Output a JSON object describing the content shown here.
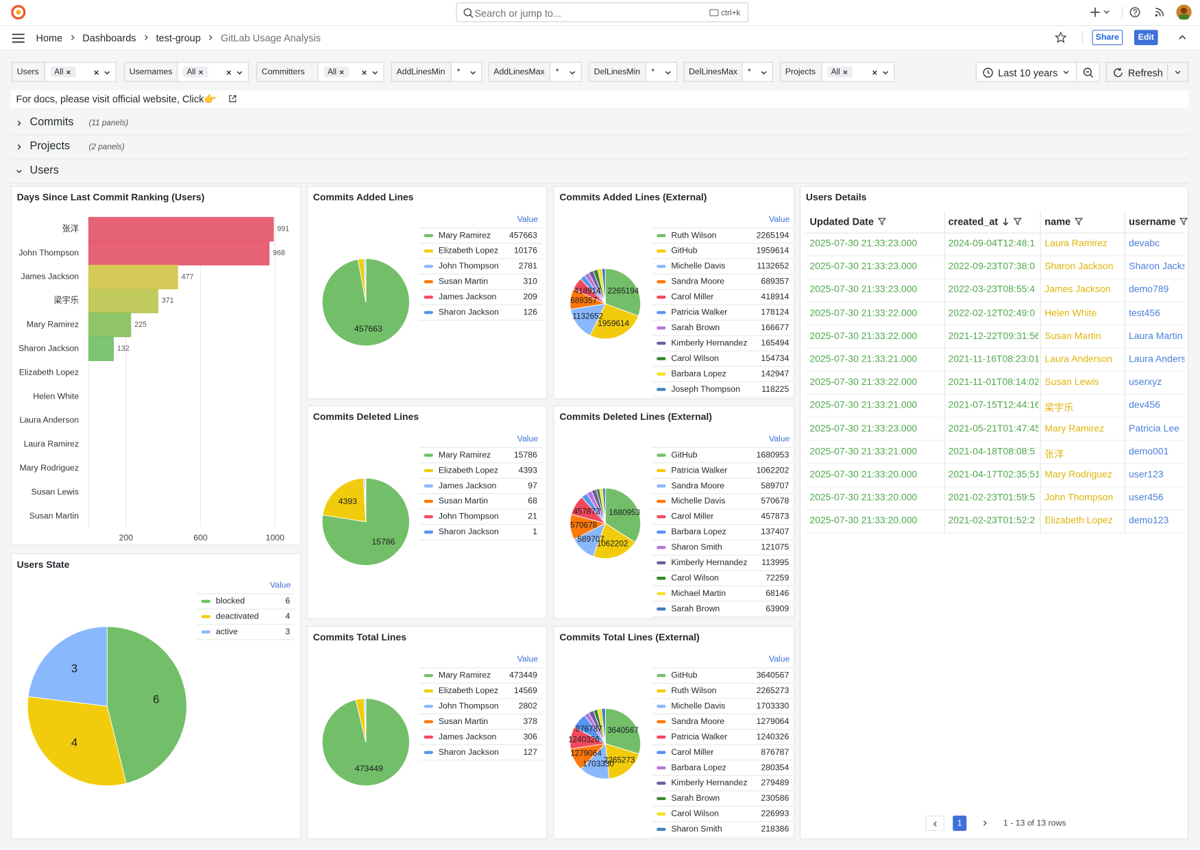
{
  "header": {
    "search_placeholder": "Search or jump to...",
    "shortcut": "ctrl+k"
  },
  "breadcrumb": [
    "Home",
    "Dashboards",
    "test-group",
    "GitLab Usage Analysis"
  ],
  "actions": [
    "Share",
    "Edit"
  ],
  "variables": [
    {
      "label": "Users",
      "value": "All",
      "multi": true
    },
    {
      "label": "Usernames",
      "value": "All",
      "multi": true
    },
    {
      "label": "Committers",
      "value": "All",
      "multi": true
    },
    {
      "label": "AddLinesMin",
      "value": "*",
      "multi": false
    },
    {
      "label": "AddLinesMax",
      "value": "*",
      "multi": false
    },
    {
      "label": "DelLinesMin",
      "value": "*",
      "multi": false
    },
    {
      "label": "DelLinesMax",
      "value": "*",
      "multi": false
    },
    {
      "label": "Projects",
      "value": "All",
      "multi": true
    }
  ],
  "time_range": "Last 10 years",
  "refresh": "Refresh",
  "docs_text": "For docs, please visit official website, Click👉",
  "rows": [
    {
      "title": "Commits",
      "note": "(11 panels)"
    },
    {
      "title": "Projects",
      "note": "(2 panels)"
    },
    {
      "title": "Users"
    }
  ],
  "palette": [
    "#73bf69",
    "#f2cc0c",
    "#8ab8ff",
    "#ff780a",
    "#f2495c",
    "#5794f2",
    "#b877d9",
    "#705da0",
    "#37872d",
    "#fade2a",
    "#447ebc"
  ],
  "bar_panel": {
    "type": "bar",
    "orientation": "horizontal",
    "title": "Days Since Last Commit Ranking (Users)",
    "categories": [
      "张洋",
      "John Thompson",
      "James Jackson",
      "梁宇乐",
      "Mary Ramirez",
      "Sharon Jackson",
      "Elizabeth Lopez",
      "Helen White",
      "Laura Anderson",
      "Laura Ramirez",
      "Mary Rodriguez",
      "Susan Lewis",
      "Susan Martin"
    ],
    "values": [
      991,
      968,
      477,
      371,
      225,
      132,
      null,
      null,
      null,
      null,
      null,
      null,
      null
    ],
    "colors": [
      "#e4566a",
      "#e4566a",
      "#d3c54b",
      "#bcc64f",
      "#86bf5c",
      "#73bf69",
      null,
      null,
      null,
      null,
      null,
      null,
      null
    ],
    "xlim": [
      0,
      1130
    ],
    "xticks": [
      200,
      600,
      1000
    ],
    "grid": true
  },
  "pies": [
    {
      "type": "pie",
      "title": "Commits Added Lines",
      "legend_header": "Value",
      "labels": [
        "Mary Ramirez",
        "Elizabeth Lopez",
        "John Thompson",
        "Susan Martin",
        "James Jackson",
        "Sharon Jackson"
      ],
      "values": [
        457663,
        10176,
        2781,
        310,
        209,
        126
      ]
    },
    {
      "type": "pie",
      "title": "Commits Added Lines (External)",
      "legend_header": "Value",
      "labels": [
        "Ruth Wilson",
        "GitHub",
        "Michelle Davis",
        "Sandra Moore",
        "Carol Miller",
        "Patricia Walker",
        "Sarah Brown",
        "Kimberly Hernandez",
        "Carol Wilson",
        "Barbara Lopez",
        "Joseph Thompson"
      ],
      "values": [
        2265194,
        1959614,
        1132652,
        689357,
        418914,
        178124,
        166677,
        165494,
        154734,
        142947,
        118225
      ]
    },
    {
      "type": "pie",
      "title": "Commits Deleted Lines",
      "legend_header": "Value",
      "labels": [
        "Mary Ramirez",
        "Elizabeth Lopez",
        "James Jackson",
        "Susan Martin",
        "John Thompson",
        "Sharon Jackson"
      ],
      "values": [
        15786,
        4393,
        97,
        68,
        21,
        1
      ]
    },
    {
      "type": "pie",
      "title": "Commits Deleted Lines (External)",
      "legend_header": "Value",
      "labels": [
        "GitHub",
        "Patricia Walker",
        "Sandra Moore",
        "Michelle Davis",
        "Carol Miller",
        "Barbara Lopez",
        "Sharon Smith",
        "Kimberly Hernandez",
        "Carol Wilson",
        "Michael Martin",
        "Sarah Brown"
      ],
      "values": [
        1680953,
        1062202,
        589707,
        570678,
        457873,
        137407,
        121075,
        113995,
        72259,
        68146,
        63909
      ]
    },
    {
      "type": "pie",
      "title": "Commits Total Lines",
      "legend_header": "Value",
      "labels": [
        "Mary Ramirez",
        "Elizabeth Lopez",
        "John Thompson",
        "Susan Martin",
        "James Jackson",
        "Sharon Jackson"
      ],
      "values": [
        473449,
        14569,
        2802,
        378,
        306,
        127
      ]
    },
    {
      "type": "pie",
      "title": "Commits Total Lines (External)",
      "legend_header": "Value",
      "labels": [
        "GitHub",
        "Ruth Wilson",
        "Michelle Davis",
        "Sandra Moore",
        "Patricia Walker",
        "Carol Miller",
        "Barbara Lopez",
        "Kimberly Hernandez",
        "Sarah Brown",
        "Carol Wilson",
        "Sharon Smith"
      ],
      "values": [
        3640567,
        2265273,
        1703330,
        1279064,
        1240326,
        876787,
        280354,
        279489,
        230586,
        226993,
        218386
      ]
    },
    {
      "type": "pie",
      "title": "Users State",
      "legend_header": "Value",
      "labels": [
        "blocked",
        "deactivated",
        "active"
      ],
      "values": [
        6,
        4,
        3
      ]
    }
  ],
  "table": {
    "title": "Users Details",
    "columns": [
      "Updated Date",
      "created_at",
      "name",
      "username"
    ],
    "rows": [
      [
        "2025-07-30 21:33:23.000",
        "2024-09-04T12:48:1",
        "Laura Ramirez",
        "devabc"
      ],
      [
        "2025-07-30 21:33:23.000",
        "2022-09-23T07:38:0",
        "Sharon Jackson",
        "Sharon Jackson"
      ],
      [
        "2025-07-30 21:33:23.000",
        "2022-03-23T08:55:4",
        "James Jackson",
        "demo789"
      ],
      [
        "2025-07-30 21:33:22.000",
        "2022-02-12T02:49:0",
        "Helen White",
        "test456"
      ],
      [
        "2025-07-30 21:33:22.000",
        "2021-12-22T09:31:56",
        "Susan Martin",
        "Laura Martin"
      ],
      [
        "2025-07-30 21:33:21.000",
        "2021-11-16T08:23:01.",
        "Laura Anderson",
        "Laura Anderson"
      ],
      [
        "2025-07-30 21:33:22.000",
        "2021-11-01T08:14:02.",
        "Susan Lewis",
        "userxyz"
      ],
      [
        "2025-07-30 21:33:21.000",
        "2021-07-15T12:44:16",
        "梁宇乐",
        "dev456"
      ],
      [
        "2025-07-30 21:33:23.000",
        "2021-05-21T01:47:45",
        "Mary Ramirez",
        "Patricia Lee"
      ],
      [
        "2025-07-30 21:33:21.000",
        "2021-04-18T08:08:5",
        "张洋",
        "demo001"
      ],
      [
        "2025-07-30 21:33:20.000",
        "2021-04-17T02:35:51",
        "Mary Rodriguez",
        "user123"
      ],
      [
        "2025-07-30 21:33:20.000",
        "2021-02-23T01:59:5",
        "John Thompson",
        "user456"
      ],
      [
        "2025-07-30 21:33:20.000",
        "2021-02-23T01:52:2",
        "Elizabeth Lopez",
        "demo123"
      ]
    ],
    "page": 1,
    "footer": "1 - 13 of 13 rows"
  }
}
